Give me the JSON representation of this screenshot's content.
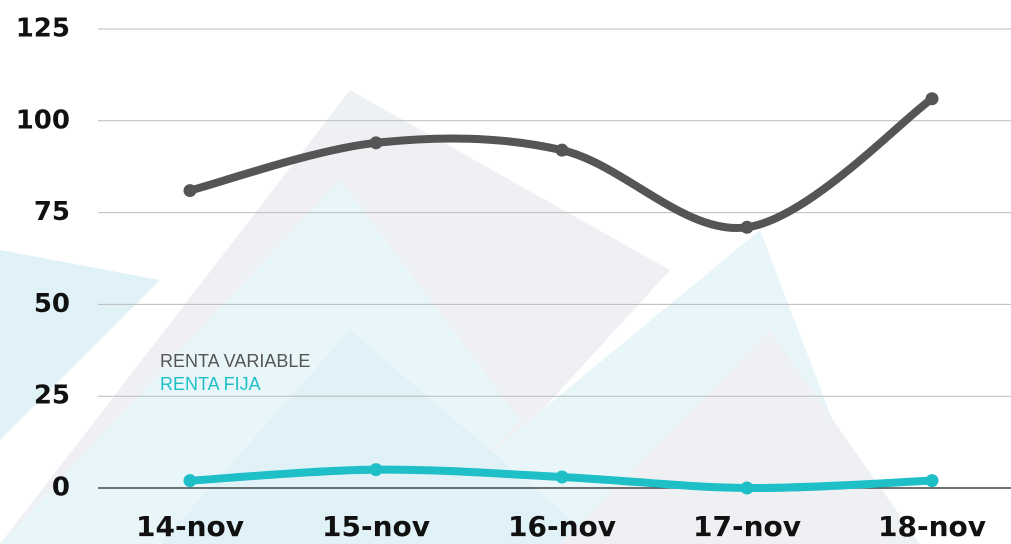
{
  "chart_data": {
    "type": "line",
    "categories": [
      "14-nov",
      "15-nov",
      "16-nov",
      "17-nov",
      "18-nov"
    ],
    "series": [
      {
        "name": "RENTA VARIABLE",
        "color": "#555555",
        "values": [
          81,
          94,
          92,
          71,
          106
        ]
      },
      {
        "name": "RENTA FIJA",
        "color": "#1fbfc8",
        "values": [
          2,
          5,
          3,
          0,
          2
        ]
      }
    ],
    "ylim": [
      0,
      125
    ],
    "yticks": [
      0,
      25,
      50,
      75,
      100,
      125
    ],
    "grid": true,
    "smooth": true
  }
}
